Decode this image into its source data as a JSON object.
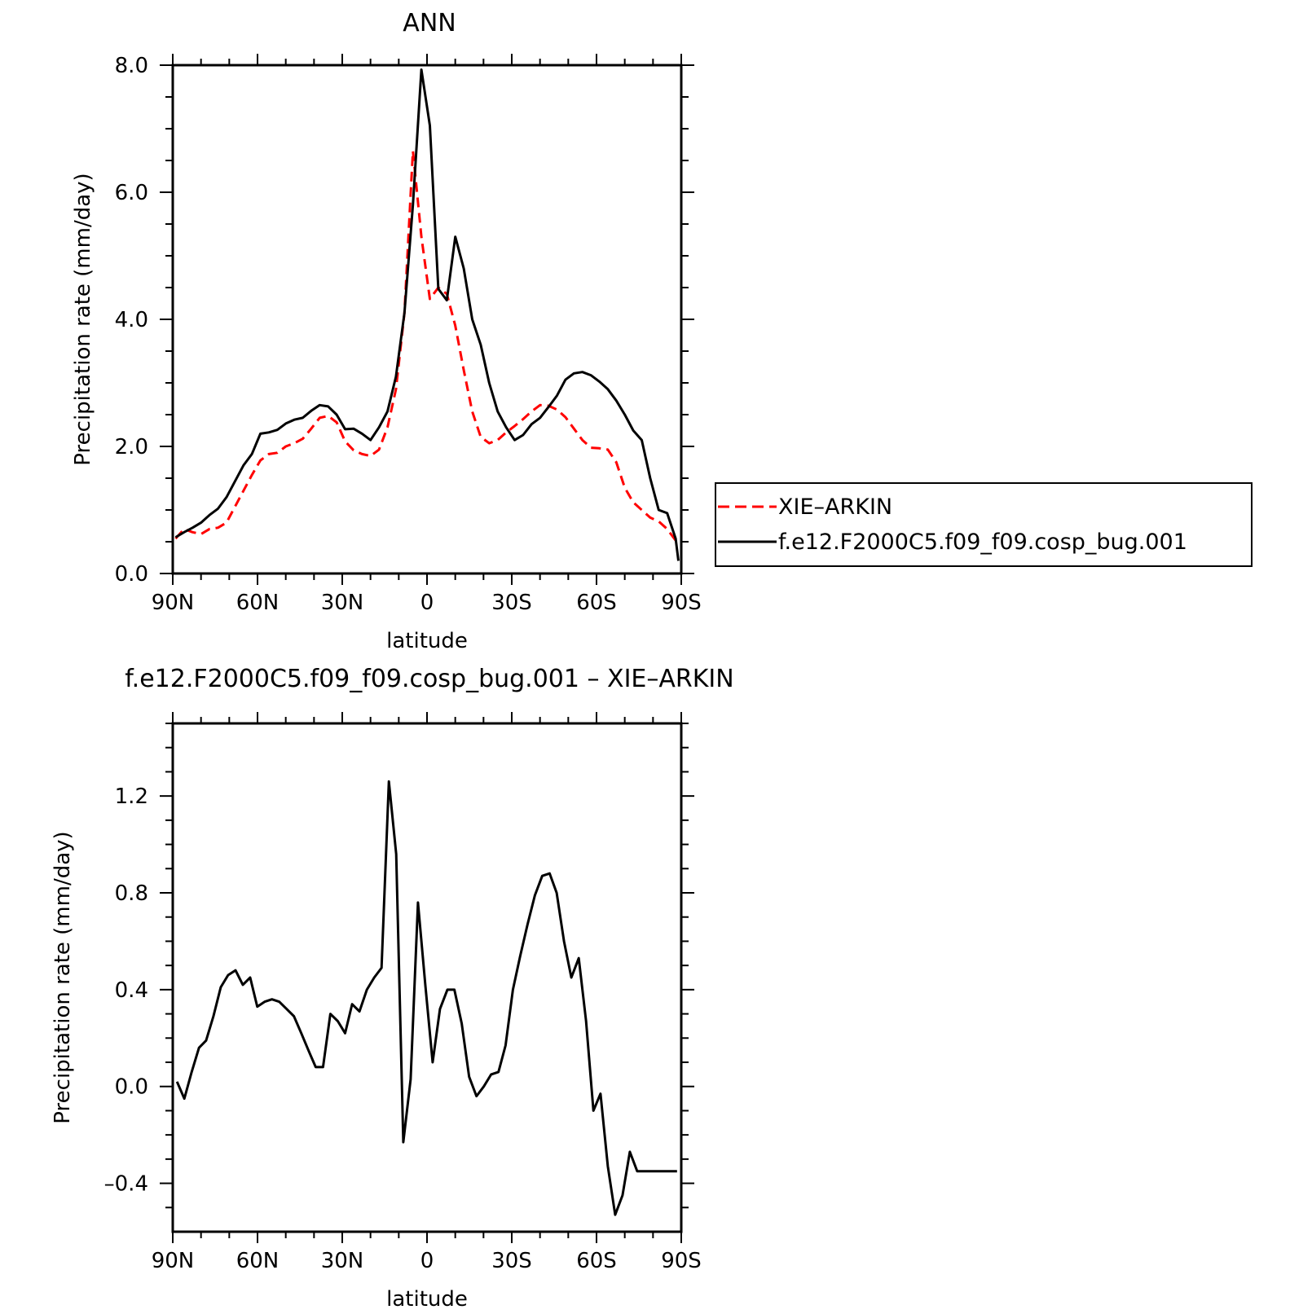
{
  "chart_data": [
    {
      "type": "line",
      "title": "ANN",
      "xlabel": "latitude",
      "ylabel": "Precipitation rate (mm/day)",
      "xlim": [
        -90,
        90
      ],
      "ylim": [
        0,
        8
      ],
      "x_ticks": [
        -90,
        -60,
        -30,
        0,
        30,
        60,
        90
      ],
      "x_tick_labels": [
        "90N",
        "60N",
        "30N",
        "0",
        "30S",
        "60S",
        "90S"
      ],
      "y_ticks": [
        0,
        2,
        4,
        6,
        8
      ],
      "y_tick_labels": [
        "0.0",
        "2.0",
        "4.0",
        "6.0",
        "8.0"
      ],
      "legend_position": "right",
      "series": [
        {
          "name": "XIE–ARKIN",
          "color": "#ff0000",
          "dash": true,
          "x": [
            -89,
            -86,
            -83,
            -80,
            -77,
            -74,
            -71,
            -68,
            -65,
            -62,
            -59,
            -56,
            -53,
            -50,
            -47,
            -44,
            -41,
            -38,
            -35,
            -32,
            -29,
            -26,
            -23,
            -20,
            -17,
            -14,
            -11,
            -8,
            -5,
            -2,
            1,
            4,
            7,
            10,
            13,
            16,
            19,
            22,
            25,
            28,
            31,
            34,
            37,
            40,
            43,
            46,
            49,
            52,
            55,
            58,
            61,
            64,
            67,
            70,
            73,
            76,
            79,
            82,
            85,
            88
          ],
          "values": [
            0.55,
            0.7,
            0.65,
            0.62,
            0.7,
            0.72,
            0.8,
            1.05,
            1.3,
            1.55,
            1.78,
            1.88,
            1.9,
            2.0,
            2.05,
            2.12,
            2.28,
            2.45,
            2.48,
            2.38,
            2.08,
            1.94,
            1.88,
            1.85,
            1.95,
            2.3,
            2.9,
            4.1,
            6.65,
            5.3,
            4.32,
            4.5,
            4.4,
            3.9,
            3.2,
            2.55,
            2.15,
            2.05,
            2.1,
            2.22,
            2.32,
            2.43,
            2.55,
            2.65,
            2.64,
            2.58,
            2.46,
            2.28,
            2.1,
            1.98,
            1.97,
            1.95,
            1.75,
            1.35,
            1.12,
            1.0,
            0.88,
            0.82,
            0.7,
            0.52
          ],
          "values_end": 0.55
        },
        {
          "name": "f.e12.F2000C5.f09_f09.cosp_bug.001",
          "color": "#000000",
          "dash": false,
          "x": [
            -89,
            -86,
            -83,
            -80,
            -77,
            -74,
            -71,
            -68,
            -65,
            -62,
            -59,
            -56,
            -53,
            -50,
            -47,
            -44,
            -41,
            -38,
            -35,
            -32,
            -29,
            -26,
            -23,
            -20,
            -17,
            -14,
            -11,
            -8,
            -5,
            -2,
            1,
            4,
            7,
            10,
            13,
            16,
            19,
            22,
            25,
            28,
            31,
            34,
            37,
            40,
            43,
            46,
            49,
            52,
            55,
            58,
            61,
            64,
            67,
            70,
            73,
            76,
            79,
            82,
            85,
            88
          ],
          "values": [
            0.57,
            0.65,
            0.72,
            0.8,
            0.92,
            1.02,
            1.2,
            1.45,
            1.7,
            1.88,
            2.2,
            2.22,
            2.26,
            2.36,
            2.42,
            2.45,
            2.56,
            2.65,
            2.63,
            2.5,
            2.27,
            2.28,
            2.2,
            2.1,
            2.3,
            2.55,
            3.1,
            4.1,
            5.8,
            7.93,
            7.05,
            4.48,
            4.3,
            5.3,
            4.8,
            4.0,
            3.6,
            3.0,
            2.55,
            2.3,
            2.1,
            2.18,
            2.35,
            2.45,
            2.62,
            2.8,
            3.05,
            3.15,
            3.17,
            3.12,
            3.02,
            2.9,
            2.72,
            2.5,
            2.25,
            2.1,
            1.5,
            1.0,
            0.95,
            0.55
          ],
          "values_end": 0.2
        }
      ]
    },
    {
      "type": "line",
      "title": "f.e12.F2000C5.f09_f09.cosp_bug.001 – XIE–ARKIN",
      "xlabel": "latitude",
      "ylabel": "Precipitation rate (mm/day)",
      "xlim": [
        -90,
        90
      ],
      "ylim": [
        -0.6,
        1.5
      ],
      "x_ticks": [
        -90,
        -60,
        -30,
        0,
        30,
        60,
        90
      ],
      "x_tick_labels": [
        "90N",
        "60N",
        "30N",
        "0",
        "30S",
        "60S",
        "90S"
      ],
      "y_ticks": [
        -0.4,
        0,
        0.4,
        0.8,
        1.2
      ],
      "y_tick_labels": [
        "–0.4",
        "0.0",
        "0.4",
        "0.8",
        "1.2"
      ],
      "series": [
        {
          "color": "#000000",
          "dash": false,
          "x": [
            -88.5,
            -85.9,
            -83.3,
            -80.7,
            -78.2,
            -75.6,
            -73.0,
            -70.4,
            -67.8,
            -65.2,
            -62.6,
            -60.1,
            -57.5,
            -54.9,
            -52.3,
            -49.7,
            -47.1,
            -44.5,
            -42.0,
            -39.4,
            -36.8,
            -34.2,
            -31.6,
            -29.0,
            -26.5,
            -23.9,
            -21.3,
            -18.7,
            -16.1,
            -13.5,
            -10.9,
            -8.4,
            -5.8,
            -3.2,
            -0.6,
            2.0,
            4.6,
            7.2,
            9.7,
            12.3,
            14.9,
            17.5,
            20.1,
            22.7,
            25.3,
            27.8,
            30.4,
            33.0,
            35.6,
            38.2,
            40.8,
            43.4,
            45.9,
            48.5,
            51.1,
            53.7,
            56.3,
            58.9,
            61.4,
            64.0,
            66.6,
            69.2,
            71.8,
            74.4,
            77.0,
            79.5,
            82.1,
            84.7,
            87.3,
            88.5
          ],
          "values": [
            0.02,
            -0.05,
            0.06,
            0.16,
            0.19,
            0.29,
            0.41,
            0.46,
            0.48,
            0.42,
            0.45,
            0.33,
            0.35,
            0.36,
            0.35,
            0.32,
            0.29,
            0.22,
            0.15,
            0.08,
            0.08,
            0.3,
            0.27,
            0.22,
            0.34,
            0.31,
            0.4,
            0.45,
            0.49,
            1.26,
            0.96,
            -0.23,
            0.03,
            0.76,
            0.42,
            0.1,
            0.32,
            0.4,
            0.4,
            0.26,
            0.04,
            -0.04,
            0.0,
            0.05,
            0.06,
            0.17,
            0.4,
            0.54,
            0.67,
            0.79,
            0.87,
            0.88,
            0.8,
            0.6,
            0.45,
            0.53,
            0.27,
            -0.1,
            -0.03,
            -0.33,
            -0.53,
            -0.45,
            -0.27,
            -0.35,
            -0.35,
            -0.35,
            -0.35,
            -0.35,
            -0.35,
            -0.35
          ]
        }
      ]
    }
  ]
}
